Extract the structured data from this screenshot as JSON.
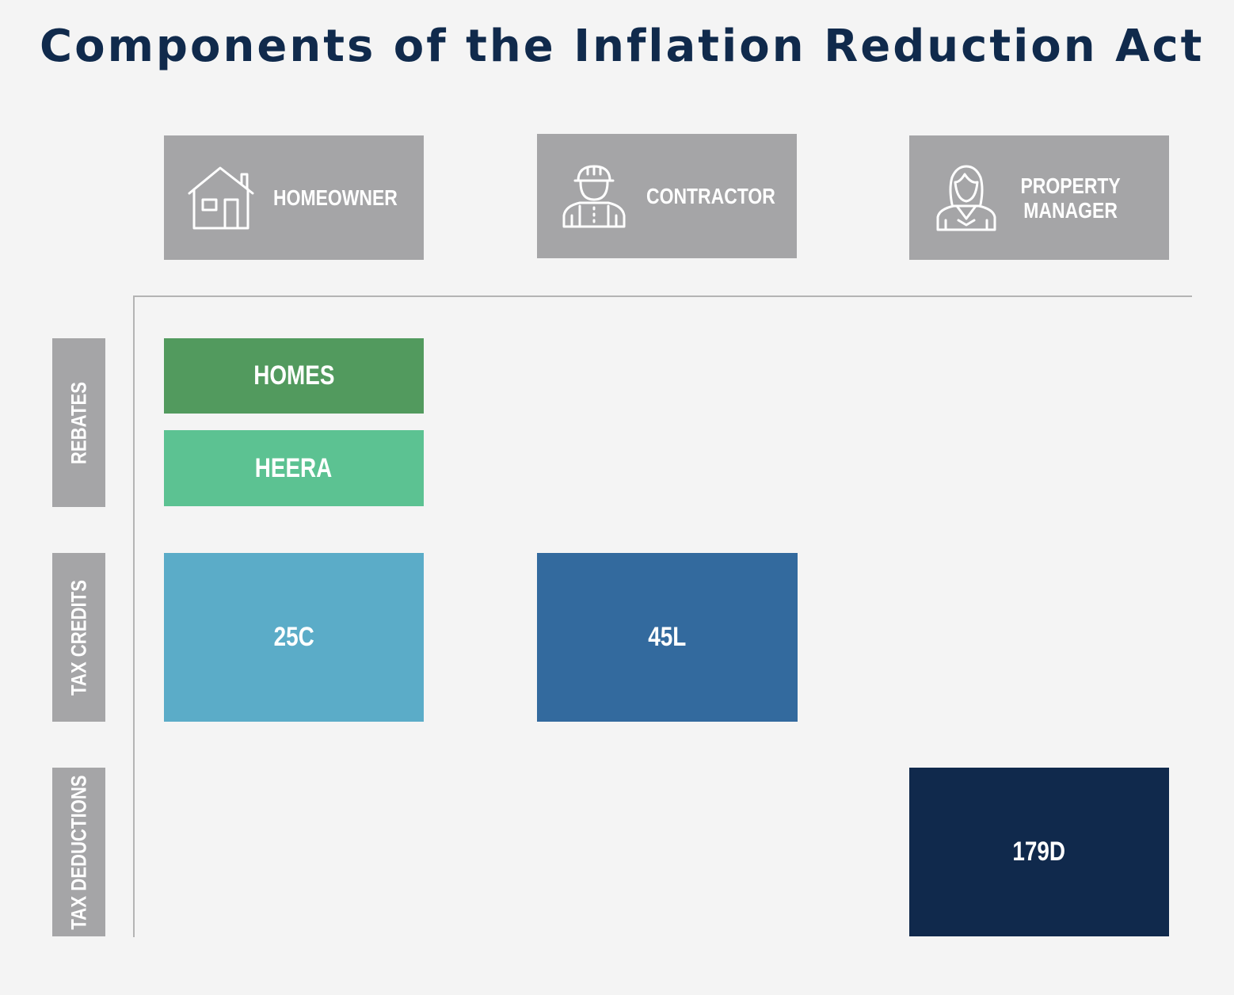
{
  "title": "Components of the Inflation Reduction Act",
  "colors": {
    "background": "#f4f4f4",
    "title": "#102a4c",
    "header_gray": "#a5a5a7",
    "homes": "#529a5e",
    "heera": "#5cc292",
    "c25": "#5bacc8",
    "l45": "#336a9e",
    "d179": "#10294c"
  },
  "columns": [
    {
      "label_lines": [
        "HOMEOWNER"
      ],
      "icon": "house-icon"
    },
    {
      "label_lines": [
        "CONTRACTOR"
      ],
      "icon": "construction-worker-icon"
    },
    {
      "label_lines": [
        "PROPERTY",
        "MANAGER"
      ],
      "icon": "businesswoman-icon"
    }
  ],
  "rows": [
    {
      "label": "REBATES"
    },
    {
      "label": "TAX CREDITS"
    },
    {
      "label": "TAX DEDUCTIONS"
    }
  ],
  "programs": {
    "homes": "HOMES",
    "heera": "HEERA",
    "c25": "25C",
    "l45": "45L",
    "d179": "179D"
  }
}
